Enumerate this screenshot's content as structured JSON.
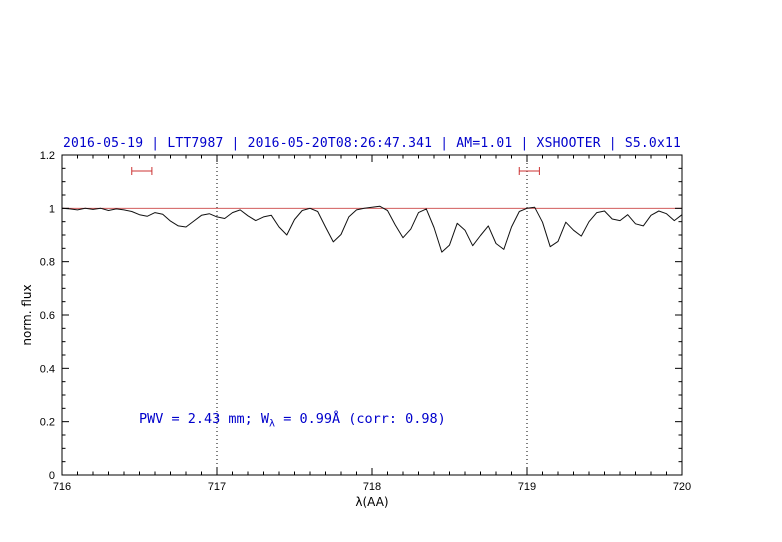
{
  "chart_data": {
    "type": "line",
    "title": "2016-05-19 | LTT7987 | 2016-05-20T08:26:47.341 | AM=1.01 | XSHOOTER | S5.0x11",
    "title_color": "#0000cc",
    "annotation": {
      "part1": "PWV = 2.43 mm; W",
      "sub": "λ",
      "part2": " = 0.99Å (corr: 0.98)",
      "color": "#0000cc"
    },
    "axes": {
      "xlabel": "λ(AA)",
      "ylabel": "norm. flux",
      "xlim": [
        716,
        720
      ],
      "ylim": [
        0,
        1.2
      ],
      "xticks": [
        716,
        717,
        718,
        719,
        720
      ],
      "xtick_labels": [
        "716",
        "717",
        "718",
        "719",
        "720"
      ],
      "yticks": [
        0,
        0.2,
        0.4,
        0.6,
        0.8,
        1.0,
        1.2
      ],
      "ytick_labels": [
        "0",
        "0.2",
        "0.4",
        "0.6",
        "0.8",
        "1",
        "1.2"
      ],
      "x_minor_step": 0.1,
      "y_minor_step": 0.05,
      "grid": false
    },
    "vlines": {
      "x": [
        717,
        719
      ],
      "style": "dotted",
      "color": "#000000"
    },
    "continuum": {
      "y": 1.0,
      "color": "#cc4444"
    },
    "marker_color": "#cc3333",
    "markers": [
      {
        "x1": 716.45,
        "x2": 716.58,
        "y": 1.14
      },
      {
        "x1": 718.95,
        "x2": 719.08,
        "y": 1.14
      }
    ],
    "series": [
      {
        "name": "spectrum",
        "color": "#111111",
        "x": [
          716.0,
          716.05,
          716.1,
          716.15,
          716.2,
          716.25,
          716.3,
          716.35,
          716.4,
          716.45,
          716.5,
          716.55,
          716.6,
          716.65,
          716.7,
          716.75,
          716.8,
          716.85,
          716.9,
          716.95,
          717.0,
          717.05,
          717.1,
          717.15,
          717.2,
          717.25,
          717.3,
          717.35,
          717.4,
          717.45,
          717.5,
          717.55,
          717.6,
          717.65,
          717.7,
          717.75,
          717.8,
          717.85,
          717.9,
          717.95,
          718.0,
          718.05,
          718.1,
          718.15,
          718.2,
          718.25,
          718.3,
          718.35,
          718.4,
          718.45,
          718.5,
          718.55,
          718.6,
          718.65,
          718.7,
          718.75,
          718.8,
          718.85,
          718.9,
          718.95,
          719.0,
          719.05,
          719.1,
          719.15,
          719.2,
          719.25,
          719.3,
          719.35,
          719.4,
          719.45,
          719.5,
          719.55,
          719.6,
          719.65,
          719.7,
          719.75,
          719.8,
          719.85,
          719.9,
          719.95,
          720.0
        ],
        "y": [
          1.0,
          0.998,
          0.994,
          1.0,
          0.996,
          1.0,
          0.992,
          0.998,
          0.994,
          0.988,
          0.976,
          0.97,
          0.984,
          0.978,
          0.952,
          0.934,
          0.93,
          0.952,
          0.974,
          0.98,
          0.968,
          0.962,
          0.984,
          0.994,
          0.972,
          0.954,
          0.968,
          0.974,
          0.93,
          0.9,
          0.958,
          0.992,
          1.0,
          0.988,
          0.93,
          0.874,
          0.902,
          0.968,
          0.994,
          1.0,
          1.004,
          1.008,
          0.992,
          0.938,
          0.89,
          0.922,
          0.984,
          0.998,
          0.928,
          0.836,
          0.862,
          0.944,
          0.918,
          0.86,
          0.898,
          0.934,
          0.868,
          0.846,
          0.93,
          0.988,
          1.0,
          1.004,
          0.948,
          0.856,
          0.876,
          0.948,
          0.918,
          0.896,
          0.95,
          0.984,
          0.99,
          0.96,
          0.954,
          0.976,
          0.942,
          0.934,
          0.974,
          0.99,
          0.98,
          0.954,
          0.976
        ]
      }
    ]
  }
}
